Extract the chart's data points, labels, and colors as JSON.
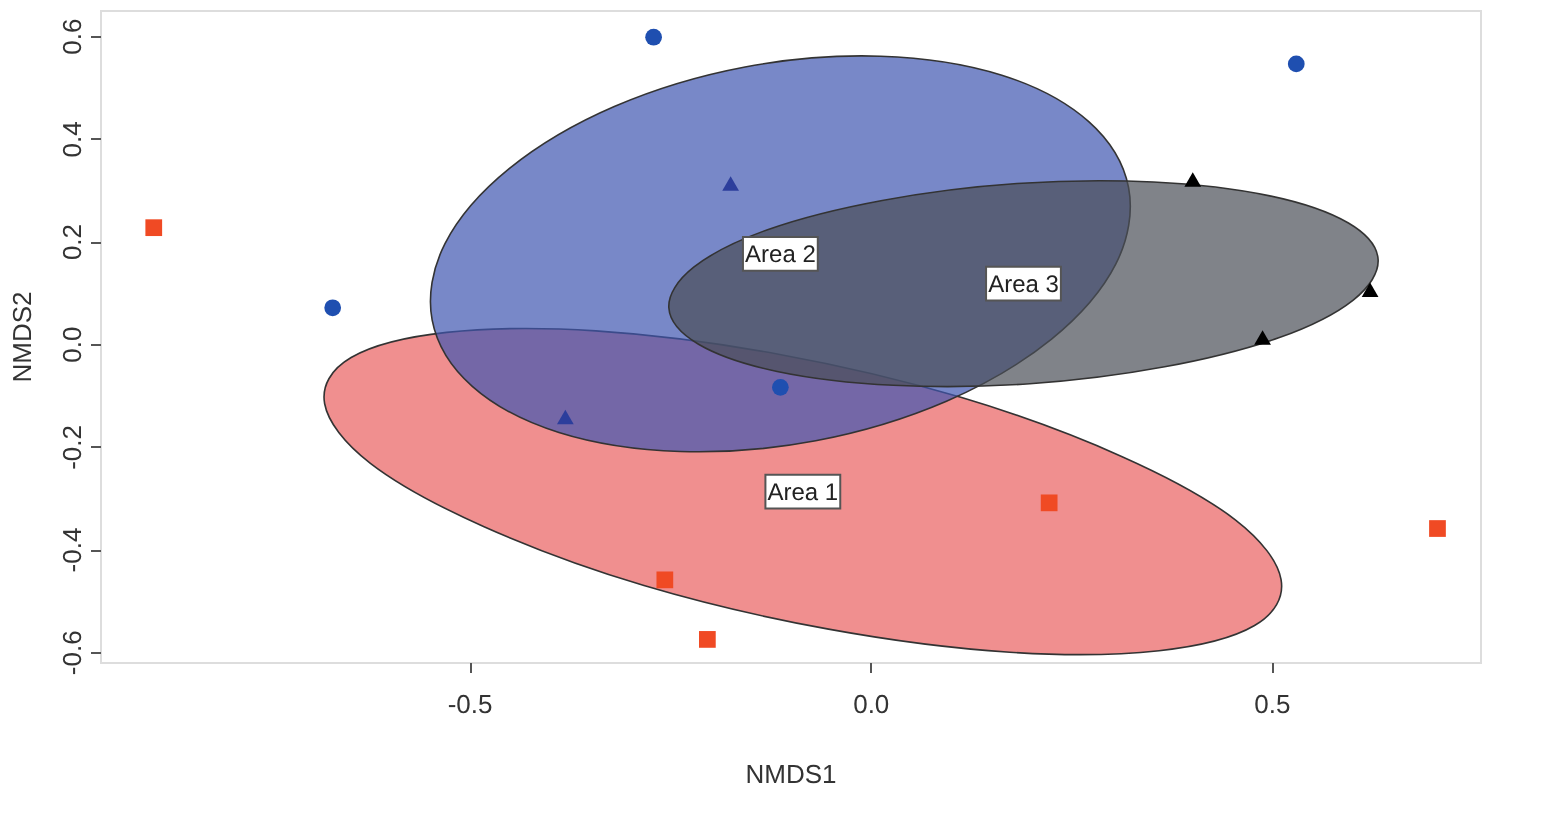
{
  "chart_data": {
    "type": "scatter",
    "xlabel": "NMDS1",
    "ylabel": "NMDS2",
    "xlim": [
      -0.96,
      0.76
    ],
    "ylim": [
      -0.62,
      0.65
    ],
    "xticks": [
      -0.5,
      {
        "value": 0,
        "label": "0.0"
      },
      0.5
    ],
    "yticks": [
      -0.6,
      -0.4,
      -0.2,
      {
        "value": 0,
        "label": "0.0"
      },
      0.2,
      0.4,
      0.6
    ],
    "series": [
      {
        "name": "Area 1",
        "type": "area",
        "color": "#ea5f5f",
        "x": [
          0.512,
          0.455,
          0.314,
          0.114,
          -0.116,
          -0.342,
          -0.528,
          -0.647,
          -0.68,
          -0.623,
          -0.482,
          -0.282,
          -0.052,
          0.174,
          0.36,
          0.479
        ],
        "values": [
          -0.459,
          -0.343,
          -0.22,
          -0.105,
          -0.02,
          0.025,
          0.022,
          -0.027,
          -0.117,
          -0.233,
          -0.356,
          -0.471,
          -0.556,
          -0.601,
          -0.598,
          -0.549
        ]
      },
      {
        "name": "Area 2",
        "type": "area",
        "color": "#3f55b0",
        "x": [
          0.322,
          0.272,
          0.164,
          0.013,
          -0.156,
          -0.319,
          -0.45,
          -0.53,
          -0.546,
          -0.496,
          -0.388,
          -0.237,
          -0.068,
          0.095,
          0.226,
          0.306
        ],
        "values": [
          0.304,
          0.433,
          0.523,
          0.56,
          0.539,
          0.462,
          0.341,
          0.195,
          0.046,
          -0.083,
          -0.173,
          -0.21,
          -0.189,
          -0.112,
          0.009,
          0.155
        ]
      },
      {
        "name": "Area 3",
        "type": "area",
        "color": "#4a4f57",
        "x": [
          0.633,
          0.596,
          0.498,
          0.353,
          0.183,
          0.015,
          -0.128,
          -0.22,
          -0.251,
          -0.214,
          -0.116,
          0.029,
          0.199,
          0.367,
          0.51,
          0.602
        ],
        "values": [
          0.164,
          0.235,
          0.288,
          0.315,
          0.312,
          0.279,
          0.222,
          0.149,
          0.07,
          -0.001,
          -0.054,
          -0.081,
          -0.078,
          -0.045,
          0.012,
          0.085
        ]
      },
      {
        "marker": "square",
        "color": "#f04a24",
        "x": [
          -0.893,
          -0.256,
          -0.203,
          0.223,
          0.707
        ],
        "values": [
          0.226,
          -0.46,
          -0.576,
          -0.31,
          -0.36
        ]
      },
      {
        "marker": "circle",
        "color": "#1f4fb0",
        "x": [
          -0.27,
          -0.67,
          0.531,
          -0.112
        ],
        "values": [
          0.597,
          0.07,
          0.545,
          -0.085
        ]
      },
      {
        "marker": "triangle",
        "color": "#2c3e9c",
        "x": [
          -0.38,
          -0.174
        ],
        "values": [
          -0.143,
          0.312
        ]
      },
      {
        "marker": "triangle",
        "color": "#000000",
        "x": [
          0.402,
          0.489,
          0.623
        ],
        "values": [
          0.32,
          0.012,
          0.105
        ]
      }
    ]
  }
}
